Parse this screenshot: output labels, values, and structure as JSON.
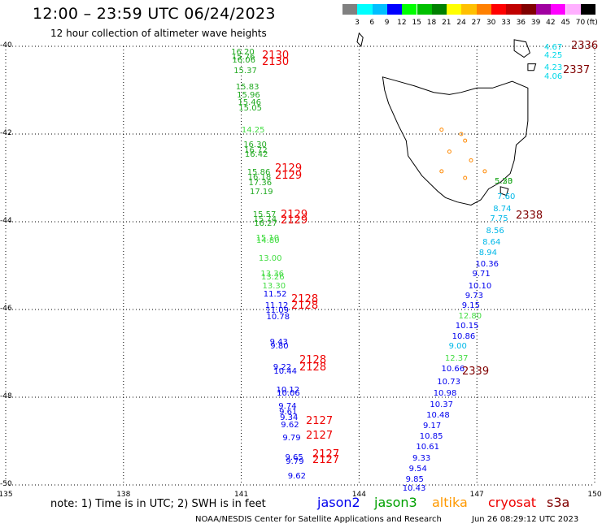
{
  "header": {
    "title": "12:00 – 23:59 UTC 06/24/2023",
    "subtitle": "12 hour collection of altimeter wave heights"
  },
  "colorbar": {
    "unit": "(ft)",
    "colors": [
      "#808080",
      "#00ffff",
      "#00bfff",
      "#0000ff",
      "#00ff00",
      "#00c000",
      "#008000",
      "#ffff00",
      "#ffc000",
      "#ff8000",
      "#ff0000",
      "#c00000",
      "#800000",
      "#a000a0",
      "#ff00ff",
      "#ffb0ff",
      "#000000"
    ],
    "labels": [
      "3",
      "6",
      "9",
      "12",
      "15",
      "18",
      "21",
      "24",
      "27",
      "30",
      "33",
      "36",
      "39",
      "42",
      "45",
      "70"
    ]
  },
  "axes": {
    "lat_labels": [
      "-40",
      "-42",
      "-44",
      "-46",
      "-48",
      "-50"
    ],
    "lon_labels": [
      "135",
      "138",
      "141",
      "144",
      "147",
      "150"
    ],
    "lat_values": [
      -40,
      -42,
      -44,
      -46,
      -48,
      -50
    ],
    "lon_values": [
      135,
      138,
      141,
      144,
      147,
      150
    ],
    "extent": {
      "lon_min": 135,
      "lon_max": 150,
      "lat_max": -40,
      "lat_min": -50
    }
  },
  "observations": [
    {
      "lon": 141.0,
      "lat": -40.15,
      "v": "16.20",
      "c": "#22aa22"
    },
    {
      "lon": 141.0,
      "lat": -40.25,
      "v": "15.76",
      "c": "#22aa22"
    },
    {
      "lon": 141.0,
      "lat": -40.33,
      "v": "16.06",
      "c": "#22aa22"
    },
    {
      "lon": 141.0,
      "lat": -40.58,
      "v": "15.37",
      "c": "#22aa22"
    },
    {
      "lon": 141.0,
      "lat": -40.95,
      "v": "15.83",
      "c": "#22aa22"
    },
    {
      "lon": 141.0,
      "lat": -41.13,
      "v": "15.96",
      "c": "#22aa22"
    },
    {
      "lon": 141.0,
      "lat": -41.3,
      "v": "15.46",
      "c": "#22aa22"
    },
    {
      "lon": 141.0,
      "lat": -41.43,
      "v": "15.05",
      "c": "#22aa22"
    },
    {
      "lon": 141.0,
      "lat": -41.93,
      "v": "14.25",
      "c": "#44dd44"
    },
    {
      "lon": 141.0,
      "lat": -42.25,
      "v": "16.30",
      "c": "#22aa22"
    },
    {
      "lon": 141.0,
      "lat": -42.38,
      "v": "16.72",
      "c": "#22aa22"
    },
    {
      "lon": 141.0,
      "lat": -42.48,
      "v": "16.42",
      "c": "#22aa22"
    },
    {
      "lon": 141.0,
      "lat": -42.88,
      "v": "15.86",
      "c": "#22aa22"
    },
    {
      "lon": 141.0,
      "lat": -43.0,
      "v": "16.18",
      "c": "#22aa22"
    },
    {
      "lon": 141.0,
      "lat": -43.13,
      "v": "17.36",
      "c": "#22aa22"
    },
    {
      "lon": 141.0,
      "lat": -43.33,
      "v": "17.19",
      "c": "#22aa22"
    },
    {
      "lon": 141.0,
      "lat": -43.85,
      "v": "15.57",
      "c": "#22aa22"
    },
    {
      "lon": 141.0,
      "lat": -43.96,
      "v": "15.74",
      "c": "#22aa22"
    },
    {
      "lon": 141.0,
      "lat": -44.05,
      "v": "16.27",
      "c": "#22aa22"
    },
    {
      "lon": 141.0,
      "lat": -44.38,
      "v": "15.10",
      "c": "#44dd44"
    },
    {
      "lon": 141.0,
      "lat": -44.45,
      "v": "14.80",
      "c": "#44dd44"
    },
    {
      "lon": 141.0,
      "lat": -44.85,
      "v": "13.00",
      "c": "#44dd44"
    },
    {
      "lon": 141.0,
      "lat": -45.2,
      "v": "13.36",
      "c": "#44dd44"
    },
    {
      "lon": 141.0,
      "lat": -45.28,
      "v": "13.26",
      "c": "#44dd44"
    },
    {
      "lon": 141.0,
      "lat": -45.48,
      "v": "13.30",
      "c": "#44dd44"
    },
    {
      "lon": 141.0,
      "lat": -45.66,
      "v": "11.52",
      "c": "#0000ee"
    },
    {
      "lon": 141.0,
      "lat": -45.93,
      "v": "11.12",
      "c": "#0000ee"
    },
    {
      "lon": 141.0,
      "lat": -46.03,
      "v": "11.09",
      "c": "#0000ee"
    },
    {
      "lon": 141.0,
      "lat": -46.18,
      "v": "10.78",
      "c": "#0000ee"
    },
    {
      "lon": 141.0,
      "lat": -46.75,
      "v": "9.43",
      "c": "#0000ee"
    },
    {
      "lon": 141.0,
      "lat": -46.85,
      "v": "9.80",
      "c": "#0000ee"
    },
    {
      "lon": 141.0,
      "lat": -47.33,
      "v": "9.22",
      "c": "#0000ee"
    },
    {
      "lon": 141.0,
      "lat": -47.42,
      "v": "10.44",
      "c": "#0000ee"
    },
    {
      "lon": 141.0,
      "lat": -47.85,
      "v": "10.12",
      "c": "#0000ee"
    },
    {
      "lon": 141.0,
      "lat": -47.93,
      "v": "10.06",
      "c": "#0000ee"
    },
    {
      "lon": 141.0,
      "lat": -48.23,
      "v": "9.74",
      "c": "#0000ee"
    },
    {
      "lon": 141.0,
      "lat": -48.35,
      "v": "9.61",
      "c": "#0000ee"
    },
    {
      "lon": 141.0,
      "lat": -48.48,
      "v": "9.34",
      "c": "#0000ee"
    },
    {
      "lon": 141.0,
      "lat": -48.65,
      "v": "9.62",
      "c": "#0000ee"
    },
    {
      "lon": 141.0,
      "lat": -48.95,
      "v": "9.79",
      "c": "#0000ee"
    },
    {
      "lon": 141.0,
      "lat": -49.38,
      "v": "9.65",
      "c": "#0000ee"
    },
    {
      "lon": 141.0,
      "lat": -49.48,
      "v": "9.79",
      "c": "#0000ee"
    },
    {
      "lon": 141.0,
      "lat": -49.82,
      "v": "9.62",
      "c": "#0000ee"
    },
    {
      "lon": 147.0,
      "lat": -40.03,
      "v": "4.67",
      "c": "#00d8e8"
    },
    {
      "lon": 147.0,
      "lat": -40.22,
      "v": "4.25",
      "c": "#00d8e8"
    },
    {
      "lon": 147.0,
      "lat": -40.5,
      "v": "4.23",
      "c": "#00d8e8"
    },
    {
      "lon": 147.0,
      "lat": -40.7,
      "v": "4.06",
      "c": "#00d8e8"
    },
    {
      "lon": 147.0,
      "lat": -43.1,
      "v": "5.20",
      "c": "#22aa22"
    },
    {
      "lon": 147.0,
      "lat": -43.1,
      "v": "5.33",
      "c": "#22aa22"
    },
    {
      "lon": 147.0,
      "lat": -43.45,
      "v": "7.60",
      "c": "#00b8e8"
    },
    {
      "lon": 147.0,
      "lat": -43.73,
      "v": "8.74",
      "c": "#00b8e8"
    },
    {
      "lon": 147.0,
      "lat": -43.95,
      "v": "7.75",
      "c": "#00b8e8"
    },
    {
      "lon": 147.0,
      "lat": -44.23,
      "v": "8.56",
      "c": "#00b8e8"
    },
    {
      "lon": 147.0,
      "lat": -44.48,
      "v": "8.64",
      "c": "#00b8e8"
    },
    {
      "lon": 147.0,
      "lat": -44.73,
      "v": "8.94",
      "c": "#00b8e8"
    },
    {
      "lon": 147.0,
      "lat": -44.98,
      "v": "10.36",
      "c": "#0000ee"
    },
    {
      "lon": 147.0,
      "lat": -45.2,
      "v": "9.71",
      "c": "#0000ee"
    },
    {
      "lon": 147.0,
      "lat": -45.48,
      "v": "10.10",
      "c": "#0000ee"
    },
    {
      "lon": 147.0,
      "lat": -45.7,
      "v": "9.73",
      "c": "#0000ee"
    },
    {
      "lon": 147.0,
      "lat": -45.93,
      "v": "9.15",
      "c": "#0000ee"
    },
    {
      "lon": 147.0,
      "lat": -46.17,
      "v": "12.80",
      "c": "#44dd44"
    },
    {
      "lon": 147.0,
      "lat": -46.38,
      "v": "10.15",
      "c": "#0000ee"
    },
    {
      "lon": 147.0,
      "lat": -46.62,
      "v": "10.86",
      "c": "#0000ee"
    },
    {
      "lon": 147.0,
      "lat": -46.85,
      "v": "9.00",
      "c": "#00b8e8"
    },
    {
      "lon": 147.0,
      "lat": -47.12,
      "v": "12.37",
      "c": "#44dd44"
    },
    {
      "lon": 147.0,
      "lat": -47.37,
      "v": "10.66",
      "c": "#0000ee"
    },
    {
      "lon": 147.0,
      "lat": -47.67,
      "v": "10.73",
      "c": "#0000ee"
    },
    {
      "lon": 147.0,
      "lat": -47.93,
      "v": "10.98",
      "c": "#0000ee"
    },
    {
      "lon": 147.0,
      "lat": -48.18,
      "v": "10.37",
      "c": "#0000ee"
    },
    {
      "lon": 147.0,
      "lat": -48.42,
      "v": "10.48",
      "c": "#0000ee"
    },
    {
      "lon": 147.0,
      "lat": -48.66,
      "v": "9.17",
      "c": "#0000ee"
    },
    {
      "lon": 147.0,
      "lat": -48.9,
      "v": "10.85",
      "c": "#0000ee"
    },
    {
      "lon": 147.0,
      "lat": -49.15,
      "v": "10.61",
      "c": "#0000ee"
    },
    {
      "lon": 147.0,
      "lat": -49.4,
      "v": "9.33",
      "c": "#0000ee"
    },
    {
      "lon": 147.0,
      "lat": -49.65,
      "v": "9.54",
      "c": "#0000ee"
    },
    {
      "lon": 147.0,
      "lat": -49.88,
      "v": "9.85",
      "c": "#0000ee"
    },
    {
      "lon": 147.0,
      "lat": -50.1,
      "v": "10.43",
      "c": "#0000ee"
    }
  ],
  "passes": [
    {
      "v": "2130",
      "c": "#ee0000"
    },
    {
      "v": "2130",
      "c": "#ee0000"
    },
    {
      "v": "2129",
      "c": "#ee0000"
    },
    {
      "v": "2129",
      "c": "#ee0000"
    },
    {
      "v": "2129",
      "c": "#ee0000"
    },
    {
      "v": "2129",
      "c": "#ee0000"
    },
    {
      "v": "2128",
      "c": "#ee0000"
    },
    {
      "v": "2128",
      "c": "#ee0000"
    },
    {
      "v": "2128",
      "c": "#ee0000"
    },
    {
      "v": "2128",
      "c": "#ee0000"
    },
    {
      "v": "2127",
      "c": "#ee0000"
    },
    {
      "v": "2127",
      "c": "#ee0000"
    },
    {
      "v": "2127",
      "c": "#ee0000"
    },
    {
      "v": "2127",
      "c": "#ee0000"
    },
    {
      "v": "2336",
      "c": "#800000"
    },
    {
      "v": "2337",
      "c": "#800000"
    },
    {
      "v": "2338",
      "c": "#800000"
    },
    {
      "v": "2339",
      "c": "#800000"
    }
  ],
  "footer": {
    "note": "note: 1) Time is in UTC; 2) SWH is in feet",
    "satellites": [
      {
        "name": "jason2",
        "color": "#0000ee"
      },
      {
        "name": "jason3",
        "color": "#00a000"
      },
      {
        "name": "altika",
        "color": "#ff9900"
      },
      {
        "name": "cryosat",
        "color": "#ee0000"
      },
      {
        "name": "s3a",
        "color": "#800000"
      }
    ],
    "credit": "NOAA/NESDIS Center for Satellite Applications and Research",
    "timestamp": "Jun 26 08:29:12 UTC 2023"
  }
}
